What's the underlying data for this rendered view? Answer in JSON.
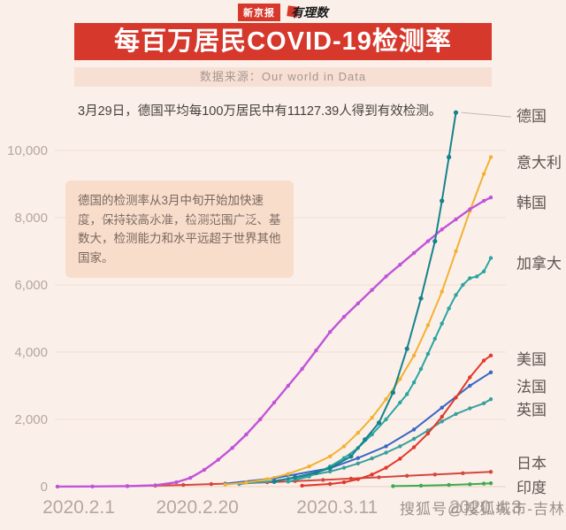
{
  "page": {
    "bg": "#fbf0e9"
  },
  "header": {
    "badge_left": "新京报",
    "badge_right": "有理数",
    "title": "每百万居民COVID-19检测率",
    "title_bg": "#d6382c",
    "source": "数据来源：Our world in Data"
  },
  "annotations": {
    "top_note": "3月29日，德国平均每100万居民中有11127.39人得到有效检测。",
    "box_note": "德国的检测率从3月中旬开始加快速度，保持较高水准，检测范围广泛、基数大，检测能力和水平远超于世界其他国家。"
  },
  "watermark": "搜狐号@搜狐城市-吉林",
  "chart_data": {
    "type": "line",
    "title": "每百万居民COVID-19检测率",
    "xlabel": "",
    "ylabel": "",
    "x_unit": "days since 2020-02-01",
    "ylim": [
      0,
      11500
    ],
    "grid": true,
    "legend_position": "right",
    "x_ticks": [
      {
        "day": 0,
        "label": "2020.2.1",
        "dx": 24
      },
      {
        "day": 19,
        "label": "2020.2.20",
        "dx": 8
      },
      {
        "day": 39,
        "label": "2020.3.11",
        "dx": 8
      },
      {
        "day": 62,
        "label": "2020.4.3",
        "dx": -6
      }
    ],
    "y_ticks": [
      {
        "v": 0,
        "label": "0"
      },
      {
        "v": 2000,
        "label": "2,000"
      },
      {
        "v": 4000,
        "label": "4,000"
      },
      {
        "v": 6000,
        "label": "6,000"
      },
      {
        "v": 8000,
        "label": "8,000"
      },
      {
        "v": 10000,
        "label": "10,000"
      }
    ],
    "series": [
      {
        "id": "india",
        "name": "印度",
        "color": "#3cab4f",
        "label_dy": 5,
        "points": [
          [
            48,
            15
          ],
          [
            52,
            30
          ],
          [
            56,
            50
          ],
          [
            59,
            70
          ],
          [
            61,
            90
          ],
          [
            62,
            100
          ]
        ]
      },
      {
        "id": "japan",
        "name": "日本",
        "color": "#d5463c",
        "label_dy": -10,
        "points": [
          [
            10,
            15
          ],
          [
            14,
            30
          ],
          [
            18,
            50
          ],
          [
            22,
            75
          ],
          [
            26,
            100
          ],
          [
            30,
            130
          ],
          [
            34,
            165
          ],
          [
            38,
            200
          ],
          [
            42,
            240
          ],
          [
            46,
            280
          ],
          [
            50,
            320
          ],
          [
            54,
            360
          ],
          [
            58,
            400
          ],
          [
            62,
            440
          ]
        ]
      },
      {
        "id": "uk",
        "name": "英国",
        "color": "#3b9e9e",
        "label_dy": 12,
        "points": [
          [
            26,
            80
          ],
          [
            30,
            150
          ],
          [
            33,
            230
          ],
          [
            36,
            330
          ],
          [
            39,
            450
          ],
          [
            41,
            560
          ],
          [
            43,
            690
          ],
          [
            45,
            840
          ],
          [
            47,
            1010
          ],
          [
            49,
            1200
          ],
          [
            51,
            1420
          ],
          [
            53,
            1670
          ],
          [
            55,
            1940
          ],
          [
            57,
            2160
          ],
          [
            59,
            2330
          ],
          [
            61,
            2480
          ],
          [
            62,
            2600
          ]
        ]
      },
      {
        "id": "france",
        "name": "法国",
        "color": "#3a66c4",
        "label_dy": 16,
        "points": [
          [
            24,
            90
          ],
          [
            31,
            250
          ],
          [
            39,
            550
          ],
          [
            43,
            850
          ],
          [
            47,
            1200
          ],
          [
            51,
            1700
          ],
          [
            55,
            2350
          ],
          [
            59,
            3000
          ],
          [
            62,
            3400
          ]
        ]
      },
      {
        "id": "usa",
        "name": "美国",
        "color": "#e2382b",
        "label_dy": 4,
        "points": [
          [
            35,
            30
          ],
          [
            39,
            80
          ],
          [
            41,
            130
          ],
          [
            43,
            220
          ],
          [
            45,
            360
          ],
          [
            47,
            560
          ],
          [
            49,
            830
          ],
          [
            51,
            1170
          ],
          [
            53,
            1580
          ],
          [
            55,
            2080
          ],
          [
            57,
            2650
          ],
          [
            59,
            3250
          ],
          [
            61,
            3750
          ],
          [
            62,
            3900
          ]
        ]
      },
      {
        "id": "canada",
        "name": "加拿大",
        "color": "#2aa5a0",
        "label_dy": 6,
        "points": [
          [
            33,
            150
          ],
          [
            36,
            300
          ],
          [
            39,
            600
          ],
          [
            41,
            850
          ],
          [
            43,
            1150
          ],
          [
            45,
            1550
          ],
          [
            47,
            2000
          ],
          [
            49,
            2500
          ],
          [
            50,
            2750
          ],
          [
            51,
            3100
          ],
          [
            52,
            3500
          ],
          [
            53,
            3950
          ],
          [
            54,
            4400
          ],
          [
            55,
            4850
          ],
          [
            56,
            5300
          ],
          [
            57,
            5700
          ],
          [
            58,
            6000
          ],
          [
            59,
            6200
          ],
          [
            60,
            6250
          ],
          [
            61,
            6400
          ],
          [
            62,
            6800
          ]
        ]
      },
      {
        "id": "italy",
        "name": "意大利",
        "color": "#f2b134",
        "label_dy": 6,
        "points": [
          [
            24,
            60
          ],
          [
            27,
            120
          ],
          [
            30,
            220
          ],
          [
            33,
            380
          ],
          [
            36,
            600
          ],
          [
            39,
            900
          ],
          [
            41,
            1200
          ],
          [
            43,
            1600
          ],
          [
            45,
            2050
          ],
          [
            47,
            2600
          ],
          [
            49,
            3200
          ],
          [
            51,
            3900
          ],
          [
            53,
            4800
          ],
          [
            55,
            5800
          ],
          [
            57,
            7000
          ],
          [
            59,
            8200
          ],
          [
            61,
            9300
          ],
          [
            62,
            9800
          ]
        ]
      },
      {
        "id": "south-korea",
        "name": "韩国",
        "color": "#c153d9",
        "label_dy": 6,
        "points": [
          [
            0,
            3
          ],
          [
            5,
            6
          ],
          [
            10,
            15
          ],
          [
            14,
            40
          ],
          [
            17,
            130
          ],
          [
            19,
            260
          ],
          [
            21,
            500
          ],
          [
            23,
            800
          ],
          [
            25,
            1150
          ],
          [
            27,
            1550
          ],
          [
            29,
            2000
          ],
          [
            31,
            2500
          ],
          [
            33,
            3000
          ],
          [
            35,
            3500
          ],
          [
            37,
            4050
          ],
          [
            39,
            4600
          ],
          [
            41,
            5050
          ],
          [
            43,
            5450
          ],
          [
            45,
            5850
          ],
          [
            47,
            6250
          ],
          [
            49,
            6600
          ],
          [
            51,
            6950
          ],
          [
            53,
            7300
          ],
          [
            55,
            7650
          ],
          [
            57,
            7950
          ],
          [
            59,
            8250
          ],
          [
            61,
            8500
          ],
          [
            62,
            8600
          ]
        ]
      },
      {
        "id": "germany",
        "name": "德国",
        "color": "#16828c",
        "label_dy": 4,
        "leader": true,
        "points": [
          [
            31,
            150
          ],
          [
            34,
            280
          ],
          [
            37,
            420
          ],
          [
            39,
            550
          ],
          [
            42,
            900
          ],
          [
            44,
            1400
          ],
          [
            46,
            1900
          ],
          [
            48,
            2800
          ],
          [
            50,
            4100
          ],
          [
            52,
            5600
          ],
          [
            54,
            7300
          ],
          [
            55,
            8500
          ],
          [
            56,
            9800
          ],
          [
            57,
            11127
          ]
        ]
      }
    ],
    "annotations": [
      "3月29日，德国平均每100万居民中有11127.39人得到有效检测。",
      "德国的检测率从3月中旬开始加快速度，保持较高水准，检测范围广泛、基数大，检测能力和水平远超于世界其他国家。"
    ]
  }
}
